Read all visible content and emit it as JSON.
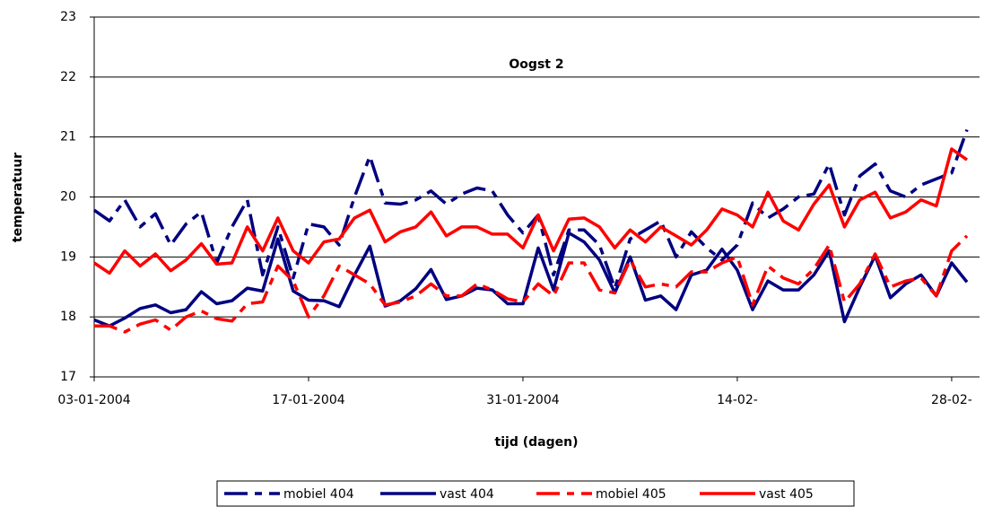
{
  "chart_data": {
    "type": "line",
    "title": "Oogst 2",
    "x_label": "tijd (dagen)",
    "y_label": "temperatuur",
    "categories": [
      "03-01-2004",
      null,
      null,
      null,
      null,
      null,
      null,
      null,
      null,
      null,
      null,
      null,
      null,
      null,
      "17-01-2004",
      null,
      null,
      null,
      null,
      null,
      null,
      null,
      null,
      null,
      null,
      null,
      null,
      null,
      "31-01-2004",
      null,
      null,
      null,
      null,
      null,
      null,
      null,
      null,
      null,
      null,
      null,
      null,
      null,
      "14-02-",
      null,
      null,
      null,
      null,
      null,
      null,
      null,
      null,
      null,
      null,
      null,
      null,
      null,
      "28-02-",
      null
    ],
    "ylim": [
      17,
      23
    ],
    "yticks": [
      17,
      18,
      19,
      20,
      21,
      22,
      23
    ],
    "grid": true,
    "legend": "bottom",
    "series": [
      {
        "name": "mobiel 404",
        "color": "#000080",
        "dashed": true,
        "values": [
          19.78,
          19.6,
          19.95,
          19.5,
          19.72,
          19.2,
          19.55,
          19.75,
          18.9,
          19.5,
          19.95,
          18.7,
          19.5,
          18.65,
          19.55,
          19.5,
          19.2,
          20.0,
          20.68,
          19.9,
          19.88,
          19.95,
          20.1,
          19.88,
          20.05,
          20.15,
          20.1,
          19.7,
          19.4,
          19.7,
          18.7,
          19.45,
          19.45,
          19.2,
          18.48,
          19.3,
          19.45,
          19.6,
          19.0,
          19.42,
          19.15,
          18.95,
          19.2,
          19.9,
          19.65,
          19.8,
          20.0,
          20.05,
          20.55,
          19.7,
          20.35,
          20.55,
          20.1,
          20.0,
          20.2,
          20.3,
          20.4,
          21.12
        ]
      },
      {
        "name": "vast 404",
        "color": "#000080",
        "dashed": false,
        "values": [
          17.95,
          17.85,
          17.98,
          18.14,
          18.2,
          18.07,
          18.12,
          18.42,
          18.22,
          18.27,
          18.48,
          18.43,
          19.3,
          18.43,
          18.28,
          18.27,
          18.17,
          18.7,
          19.18,
          18.18,
          18.27,
          18.47,
          18.79,
          18.29,
          18.35,
          18.48,
          18.45,
          18.22,
          18.22,
          19.15,
          18.45,
          19.4,
          19.25,
          18.95,
          18.4,
          19.0,
          18.28,
          18.35,
          18.12,
          18.7,
          18.78,
          19.13,
          18.78,
          18.12,
          18.6,
          18.45,
          18.45,
          18.7,
          19.1,
          17.92,
          18.5,
          19.02,
          18.32,
          18.55,
          18.7,
          18.35,
          18.9,
          18.58
        ]
      },
      {
        "name": "mobiel 405",
        "color": "#ff0000",
        "dashed": true,
        "values": [
          17.85,
          17.85,
          17.75,
          17.88,
          17.95,
          17.78,
          18.0,
          18.1,
          17.97,
          17.93,
          18.22,
          18.25,
          18.85,
          18.6,
          18.0,
          18.35,
          18.85,
          18.7,
          18.55,
          18.2,
          18.25,
          18.35,
          18.55,
          18.35,
          18.35,
          18.55,
          18.45,
          18.3,
          18.25,
          18.55,
          18.35,
          18.9,
          18.9,
          18.45,
          18.4,
          18.95,
          18.5,
          18.55,
          18.5,
          18.75,
          18.75,
          18.9,
          19.0,
          18.2,
          18.85,
          18.65,
          18.55,
          18.8,
          19.2,
          18.25,
          18.55,
          19.05,
          18.5,
          18.6,
          18.65,
          18.35,
          19.1,
          19.35
        ]
      },
      {
        "name": "vast 405",
        "color": "#ff0000",
        "dashed": false,
        "values": [
          18.9,
          18.73,
          19.1,
          18.85,
          19.05,
          18.77,
          18.95,
          19.22,
          18.88,
          18.9,
          19.5,
          19.1,
          19.65,
          19.1,
          18.9,
          19.25,
          19.3,
          19.65,
          19.78,
          19.25,
          19.42,
          19.5,
          19.75,
          19.35,
          19.5,
          19.5,
          19.38,
          19.38,
          19.15,
          19.7,
          19.1,
          19.63,
          19.65,
          19.5,
          19.15,
          19.45,
          19.25,
          19.5,
          19.35,
          19.2,
          19.45,
          19.8,
          19.7,
          19.5,
          20.08,
          19.6,
          19.45,
          19.88,
          20.2,
          19.5,
          19.95,
          20.08,
          19.65,
          19.75,
          19.95,
          19.85,
          20.8,
          20.62
        ]
      }
    ]
  }
}
